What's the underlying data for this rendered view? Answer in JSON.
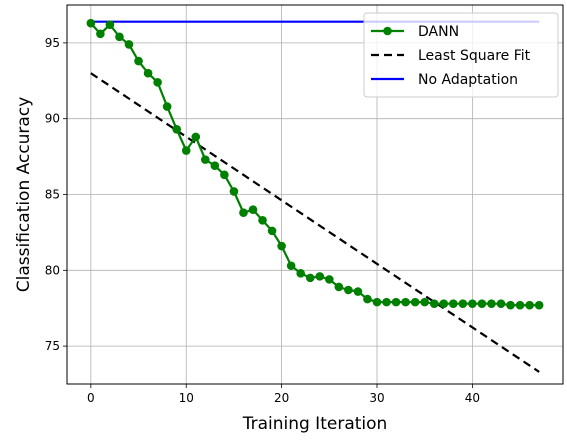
{
  "chart_data": {
    "type": "line",
    "xlabel": "Training Iteration",
    "ylabel": "Classification Accuracy",
    "xlim": [
      -2.5,
      49.5
    ],
    "ylim": [
      72.5,
      97.5
    ],
    "xticks": [
      0,
      10,
      20,
      30,
      40
    ],
    "yticks": [
      75,
      80,
      85,
      90,
      95
    ],
    "grid": true,
    "legend_position": "top-right",
    "series": [
      {
        "name": "DANN",
        "color": "#008000",
        "style": "solid-with-circle-markers",
        "x": [
          0,
          1,
          2,
          3,
          4,
          5,
          6,
          7,
          8,
          9,
          10,
          11,
          12,
          13,
          14,
          15,
          16,
          17,
          18,
          19,
          20,
          21,
          22,
          23,
          24,
          25,
          26,
          27,
          28,
          29,
          30,
          31,
          32,
          33,
          34,
          35,
          36,
          37,
          38,
          39,
          40,
          41,
          42,
          43,
          44,
          45,
          46,
          47
        ],
        "values": [
          96.3,
          95.6,
          96.2,
          95.4,
          94.9,
          93.8,
          93.0,
          92.4,
          90.8,
          89.3,
          87.9,
          88.8,
          87.3,
          86.9,
          86.3,
          85.2,
          83.8,
          84.0,
          83.3,
          82.6,
          81.6,
          80.3,
          79.8,
          79.5,
          79.6,
          79.4,
          78.9,
          78.7,
          78.6,
          78.1,
          77.9,
          77.9,
          77.9,
          77.9,
          77.9,
          77.9,
          77.8,
          77.8,
          77.8,
          77.8,
          77.8,
          77.8,
          77.8,
          77.8,
          77.7,
          77.7,
          77.7,
          77.7
        ]
      },
      {
        "name": "Least Square Fit",
        "color": "#000000",
        "style": "dashed",
        "x": [
          0,
          47
        ],
        "values": [
          93.0,
          73.3
        ]
      },
      {
        "name": "No Adaptation",
        "color": "#0000ff",
        "style": "solid",
        "x": [
          0,
          47
        ],
        "values": [
          96.4,
          96.4
        ]
      }
    ]
  }
}
